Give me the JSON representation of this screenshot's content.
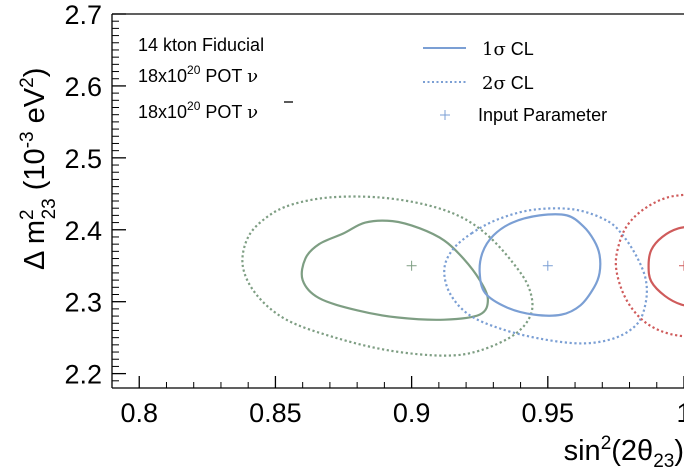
{
  "chart_data": {
    "type": "contour",
    "x_axis": {
      "label_text": "sin",
      "label_sup": "2",
      "label_paren": "(2θ",
      "label_sub": "23",
      "label_close": ")",
      "range": [
        0.79,
        1.0
      ],
      "ticks": [
        {
          "value": 0.8,
          "label": "0.8"
        },
        {
          "value": 0.85,
          "label": "0.85"
        },
        {
          "value": 0.9,
          "label": "0.9"
        },
        {
          "value": 0.95,
          "label": "0.95"
        },
        {
          "value": 1.0,
          "label": "1"
        }
      ]
    },
    "y_axis": {
      "label_delta": "Δ m",
      "label_sup": "2",
      "label_sub": "23",
      "label_unit_open": " (10",
      "label_unit_exp": "-3",
      "label_unit_mid": " eV",
      "label_unit_exp2": "2",
      "label_unit_close": ")",
      "range": [
        2.18,
        2.7
      ],
      "ticks": [
        {
          "value": 2.2,
          "label": "2.2"
        },
        {
          "value": 2.3,
          "label": "2.3"
        },
        {
          "value": 2.4,
          "label": "2.4"
        },
        {
          "value": 2.5,
          "label": "2.5"
        },
        {
          "value": 2.6,
          "label": "2.6"
        },
        {
          "value": 2.7,
          "label": "2.7"
        }
      ]
    },
    "annotations": [
      {
        "text": "14 kton Fiducial"
      },
      {
        "text_base": "18x10",
        "text_sup": "20",
        "text_rest": " POT ",
        "symbol": "ν",
        "overline": false
      },
      {
        "text_base": "18x10",
        "text_sup": "20",
        "text_rest": " POT ",
        "symbol": "ν",
        "overline": true
      }
    ],
    "legend": {
      "placement": "top-right",
      "entries": [
        {
          "label_symbol": "1σ",
          "label_rest": " CL",
          "style": "solid"
        },
        {
          "label_symbol": "2σ",
          "label_rest": " CL",
          "style": "dotted"
        },
        {
          "label_symbol": "",
          "label_rest": "Input Parameter",
          "style": "marker"
        }
      ]
    },
    "legend_color": "#7b9fd4",
    "series": [
      {
        "input": [
          0.9,
          2.35
        ],
        "color": "#7e9e83",
        "contour_1sigma": [
          [
            0.875,
            2.395
          ],
          [
            0.883,
            2.41
          ],
          [
            0.893,
            2.412
          ],
          [
            0.903,
            2.402
          ],
          [
            0.912,
            2.385
          ],
          [
            0.919,
            2.36
          ],
          [
            0.925,
            2.33
          ],
          [
            0.928,
            2.303
          ],
          [
            0.925,
            2.282
          ],
          [
            0.912,
            2.275
          ],
          [
            0.895,
            2.278
          ],
          [
            0.88,
            2.288
          ],
          [
            0.866,
            2.305
          ],
          [
            0.86,
            2.33
          ],
          [
            0.861,
            2.36
          ],
          [
            0.866,
            2.38
          ]
        ],
        "contour_2sigma": [
          [
            0.856,
            2.435
          ],
          [
            0.87,
            2.445
          ],
          [
            0.888,
            2.445
          ],
          [
            0.905,
            2.435
          ],
          [
            0.918,
            2.418
          ],
          [
            0.928,
            2.392
          ],
          [
            0.937,
            2.355
          ],
          [
            0.943,
            2.32
          ],
          [
            0.944,
            2.285
          ],
          [
            0.938,
            2.255
          ],
          [
            0.925,
            2.232
          ],
          [
            0.912,
            2.225
          ],
          [
            0.892,
            2.232
          ],
          [
            0.872,
            2.25
          ],
          [
            0.854,
            2.275
          ],
          [
            0.843,
            2.31
          ],
          [
            0.838,
            2.35
          ],
          [
            0.84,
            2.39
          ],
          [
            0.847,
            2.418
          ]
        ]
      },
      {
        "input": [
          0.95,
          2.35
        ],
        "color": "#7b9fd4",
        "contour_1sigma": [
          [
            0.93,
            2.392
          ],
          [
            0.937,
            2.41
          ],
          [
            0.947,
            2.42
          ],
          [
            0.957,
            2.42
          ],
          [
            0.963,
            2.405
          ],
          [
            0.967,
            2.385
          ],
          [
            0.969,
            2.365
          ],
          [
            0.969,
            2.34
          ],
          [
            0.967,
            2.32
          ],
          [
            0.962,
            2.295
          ],
          [
            0.955,
            2.282
          ],
          [
            0.945,
            2.282
          ],
          [
            0.935,
            2.292
          ],
          [
            0.927,
            2.312
          ],
          [
            0.925,
            2.34
          ],
          [
            0.926,
            2.368
          ]
        ],
        "contour_2sigma": [
          [
            0.922,
            2.395
          ],
          [
            0.932,
            2.415
          ],
          [
            0.945,
            2.428
          ],
          [
            0.96,
            2.428
          ],
          [
            0.972,
            2.412
          ],
          [
            0.978,
            2.39
          ],
          [
            0.983,
            2.36
          ],
          [
            0.986,
            2.33
          ],
          [
            0.986,
            2.3
          ],
          [
            0.983,
            2.27
          ],
          [
            0.975,
            2.25
          ],
          [
            0.963,
            2.242
          ],
          [
            0.948,
            2.248
          ],
          [
            0.933,
            2.262
          ],
          [
            0.921,
            2.282
          ],
          [
            0.914,
            2.312
          ],
          [
            0.912,
            2.345
          ],
          [
            0.915,
            2.372
          ]
        ]
      },
      {
        "input": [
          1.0,
          2.35
        ],
        "color": "#cf5b5b",
        "contour_1sigma": [
          [
            1.005,
            2.405
          ],
          [
            0.998,
            2.402
          ],
          [
            0.992,
            2.39
          ],
          [
            0.988,
            2.372
          ],
          [
            0.987,
            2.35
          ],
          [
            0.988,
            2.328
          ],
          [
            0.993,
            2.308
          ],
          [
            0.999,
            2.296
          ],
          [
            1.005,
            2.293
          ]
        ],
        "contour_2sigma": [
          [
            1.005,
            2.45
          ],
          [
            0.994,
            2.445
          ],
          [
            0.985,
            2.428
          ],
          [
            0.979,
            2.405
          ],
          [
            0.976,
            2.378
          ],
          [
            0.975,
            2.35
          ],
          [
            0.977,
            2.318
          ],
          [
            0.981,
            2.29
          ],
          [
            0.987,
            2.268
          ],
          [
            0.995,
            2.255
          ],
          [
            1.005,
            2.25
          ]
        ]
      }
    ]
  }
}
